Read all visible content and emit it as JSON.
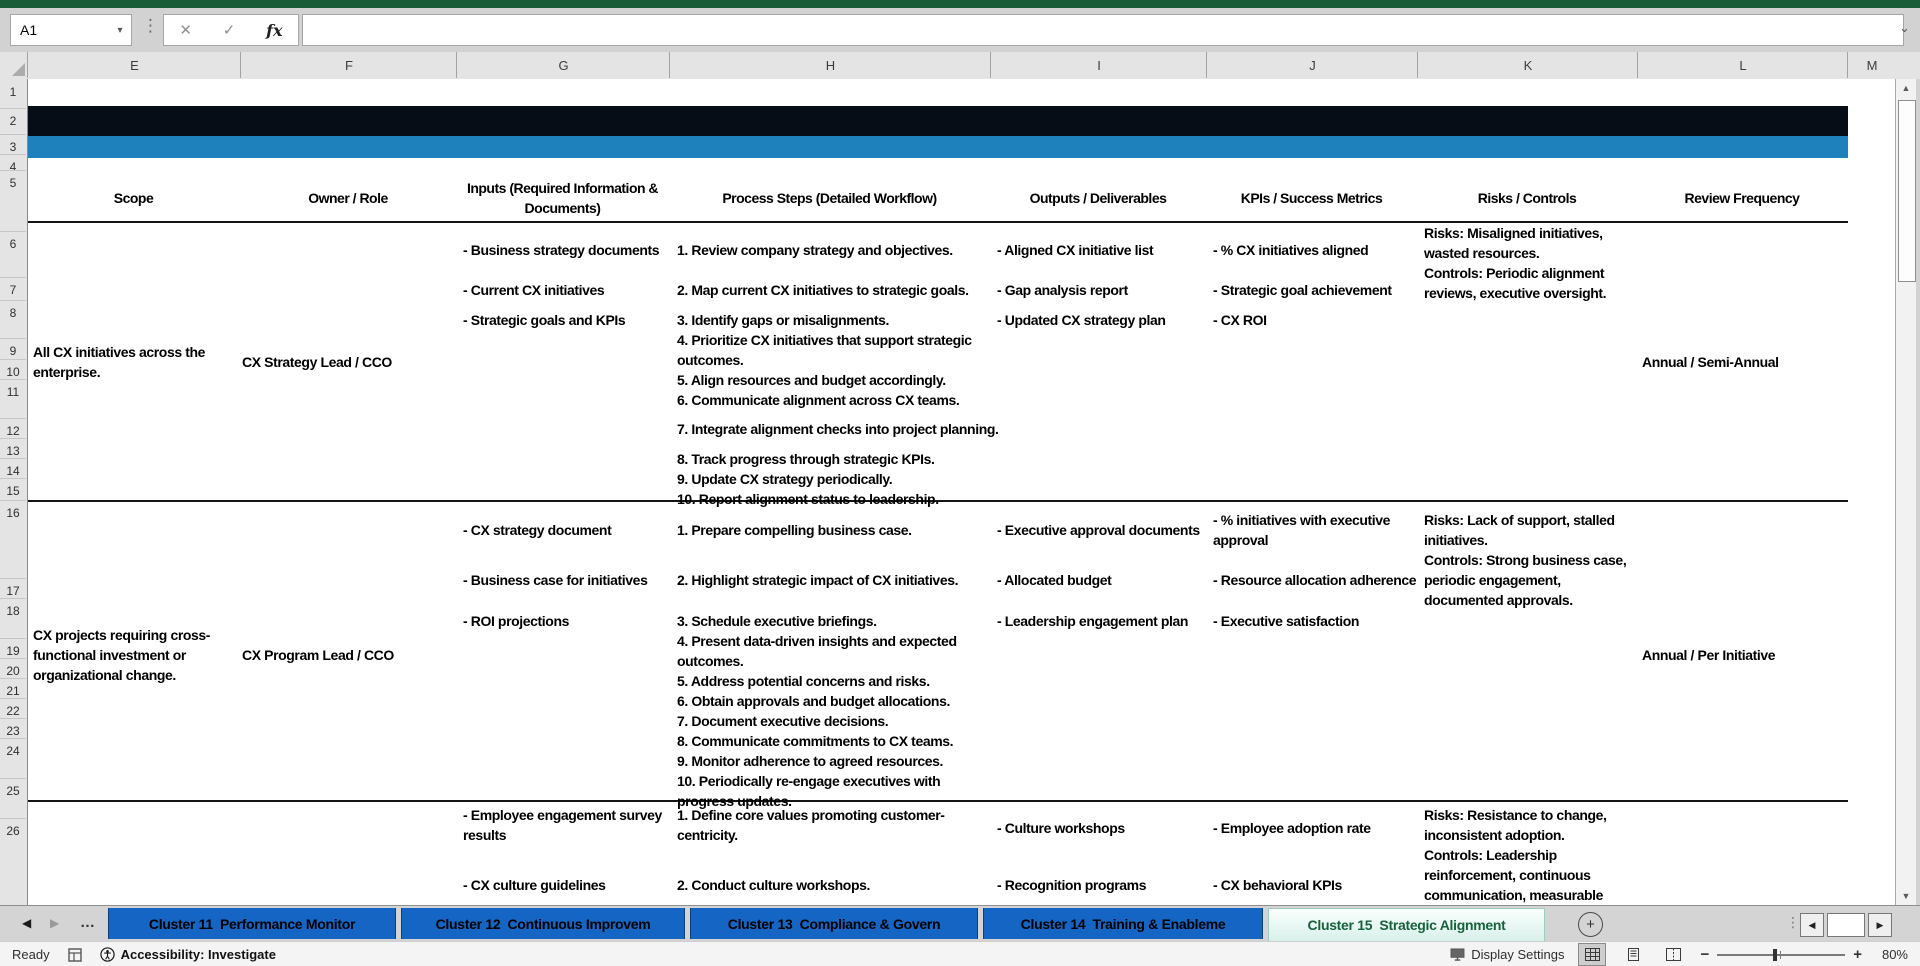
{
  "chrome": {
    "name_box": "A1",
    "cancel_icon": "✕",
    "enter_icon": "✓",
    "fx_label": "fx",
    "formula_value": "",
    "name_box_arrow": "▾",
    "formula_expand_icon": "⌄"
  },
  "columns": [
    "E",
    "F",
    "G",
    "H",
    "I",
    "J",
    "K",
    "L",
    "M"
  ],
  "grid": {
    "row_numbers": [
      1,
      2,
      3,
      4,
      5,
      6,
      7,
      8,
      9,
      10,
      11,
      12,
      13,
      14,
      15,
      16,
      17,
      18,
      19,
      20,
      21,
      22,
      23,
      24,
      25,
      26
    ]
  },
  "table": {
    "headers": {
      "scope": "Scope",
      "owner": "Owner / Role",
      "inputs": "Inputs (Required Information & Documents)",
      "process": "Process Steps (Detailed Workflow)",
      "outputs": "Outputs / Deliverables",
      "kpis": "KPIs / Success Metrics",
      "risks": "Risks / Controls",
      "review": "Review Frequency"
    },
    "sections": [
      {
        "scope": "All CX initiatives across the enterprise.",
        "owner": "CX Strategy Lead / CCO",
        "inputs": [
          "- Business strategy documents",
          "- Current CX initiatives",
          "- Strategic goals and KPIs"
        ],
        "steps": [
          "1. Review company strategy and objectives.",
          "2. Map current CX initiatives to strategic goals.",
          "3. Identify gaps or misalignments.",
          "4. Prioritize CX initiatives that support strategic outcomes.",
          "5. Align resources and budget accordingly.",
          "6. Communicate alignment across CX teams.",
          "7. Integrate alignment checks into project planning.",
          "8. Track progress through strategic KPIs.",
          "9. Update CX strategy periodically.",
          "10. Report alignment status to leadership."
        ],
        "outputs": [
          "- Aligned CX initiative list",
          "- Gap analysis report",
          "- Updated CX strategy plan"
        ],
        "kpis": [
          "- % CX initiatives aligned",
          "- Strategic goal achievement",
          "- CX ROI"
        ],
        "risks": "Risks: Misaligned initiatives, wasted resources.",
        "controls": "Controls: Periodic alignment reviews, executive oversight.",
        "review": "Annual / Semi-Annual"
      },
      {
        "scope": "CX projects requiring cross-functional investment or organizational change.",
        "owner": "CX Program Lead / CCO",
        "inputs": [
          "- CX strategy document",
          "- Business case for initiatives",
          "- ROI projections"
        ],
        "steps": [
          "1. Prepare compelling business case.",
          "2. Highlight strategic impact of CX initiatives.",
          "3. Schedule executive briefings.",
          "4. Present data-driven insights and expected outcomes.",
          "5. Address potential concerns and risks.",
          "6. Obtain approvals and budget allocations.",
          "7. Document executive decisions.",
          "8. Communicate commitments to CX teams.",
          "9. Monitor adherence to agreed resources.",
          "10. Periodically re-engage executives with progress updates."
        ],
        "outputs": [
          "- Executive approval documents",
          "- Allocated budget",
          "- Leadership engagement plan"
        ],
        "kpis": [
          "- % initiatives with executive approval",
          "- Resource allocation adherence",
          "- Executive satisfaction"
        ],
        "risks": "Risks: Lack of support, stalled initiatives.",
        "controls": "Controls: Strong business case, periodic engagement, documented approvals.",
        "review": "Annual / Per Initiative"
      },
      {
        "inputs": [
          "- Employee engagement survey results",
          "- CX culture guidelines"
        ],
        "steps": [
          "1. Define core values promoting customer-centricity.",
          "2. Conduct culture workshops."
        ],
        "outputs": [
          "- Culture workshops",
          "- Recognition programs"
        ],
        "kpis": [
          "- Employee adoption rate",
          "- CX behavioral KPIs"
        ],
        "risks": "Risks: Resistance to change, inconsistent adoption.",
        "controls": "Controls: Leadership reinforcement, continuous communication, measurable"
      }
    ]
  },
  "tabbar": {
    "prev_icon": "◀",
    "next_icon": "▶",
    "overflow_label": "…",
    "sheets": [
      {
        "label": "Cluster 11  Performance Monitor"
      },
      {
        "label": "Cluster 12  Continuous Improvem"
      },
      {
        "label": "Cluster 13  Compliance & Govern"
      },
      {
        "label": "Cluster 14  Training & Enableme"
      },
      {
        "label": "Cluster 15  Strategic Alignment"
      }
    ],
    "add_sheet_icon": "+",
    "hscroll_left_icon": "◀",
    "hscroll_right_icon": "▶",
    "menu_dots": "⋮"
  },
  "statusbar": {
    "ready": "Ready",
    "accessibility": "Accessibility: Investigate",
    "display_settings": "Display Settings",
    "zoom_out": "−",
    "zoom_in": "+",
    "zoom_level": "80%"
  }
}
